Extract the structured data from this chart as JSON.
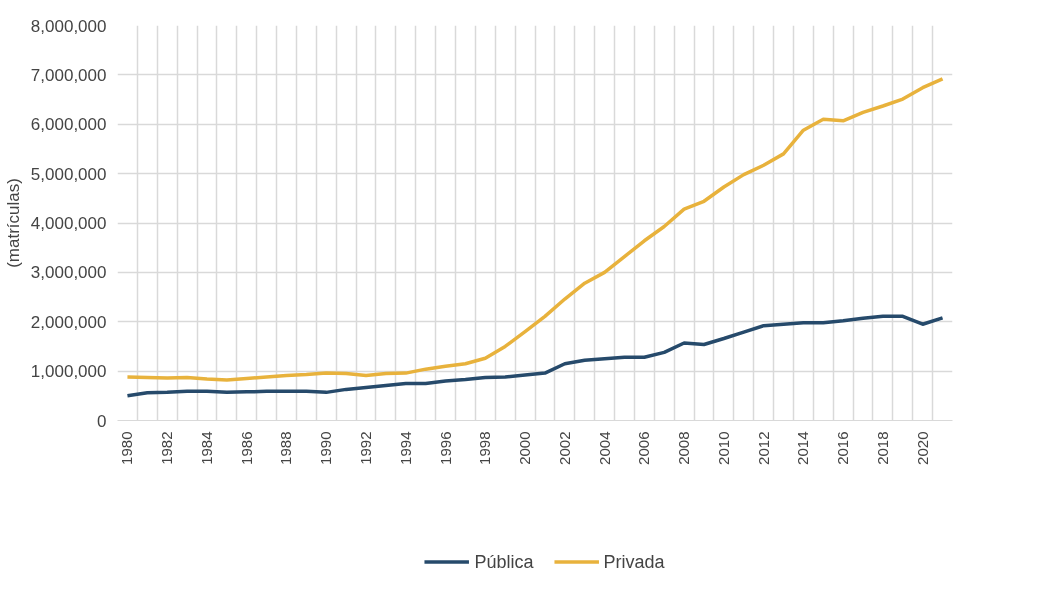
{
  "chart_data": {
    "type": "line",
    "ylabel": "(matrículas)",
    "categories": [
      "1980",
      null,
      "1982",
      null,
      "1984",
      null,
      "1986",
      null,
      "1988",
      null,
      "1990",
      null,
      "1992",
      null,
      "1994",
      null,
      "1996",
      null,
      "1998",
      null,
      "2000",
      null,
      "2002",
      null,
      "2004",
      null,
      "2006",
      null,
      "2008",
      null,
      "2010",
      null,
      "2012",
      null,
      "2014",
      null,
      "2016",
      null,
      "2018",
      null,
      "2020",
      null
    ],
    "series": [
      {
        "name": "Pública",
        "color": "#264a6b",
        "values": [
          500000,
          560000,
          570000,
          590000,
          590000,
          570000,
          580000,
          590000,
          590000,
          590000,
          570000,
          630000,
          670000,
          710000,
          750000,
          750000,
          800000,
          830000,
          870000,
          880000,
          920000,
          960000,
          1150000,
          1220000,
          1250000,
          1280000,
          1280000,
          1380000,
          1570000,
          1540000,
          1660000,
          1790000,
          1920000,
          1950000,
          1980000,
          1980000,
          2020000,
          2070000,
          2110000,
          2110000,
          1950000,
          2080000
        ]
      },
      {
        "name": "Privada",
        "color": "#e8b23c",
        "values": [
          880000,
          870000,
          860000,
          870000,
          840000,
          820000,
          850000,
          880000,
          910000,
          930000,
          960000,
          950000,
          910000,
          950000,
          960000,
          1040000,
          1100000,
          1150000,
          1260000,
          1500000,
          1800000,
          2110000,
          2460000,
          2780000,
          3000000,
          3320000,
          3640000,
          3930000,
          4280000,
          4440000,
          4730000,
          4980000,
          5170000,
          5400000,
          5880000,
          6100000,
          6070000,
          6240000,
          6370000,
          6510000,
          6740000,
          6920000
        ]
      }
    ],
    "ylim": [
      0,
      8000000
    ],
    "yticks": [
      {
        "value": 0,
        "label": "0"
      },
      {
        "value": 1000000,
        "label": "1,000,000"
      },
      {
        "value": 2000000,
        "label": "2,000,000"
      },
      {
        "value": 3000000,
        "label": "3,000,000"
      },
      {
        "value": 4000000,
        "label": "4,000,000"
      },
      {
        "value": 5000000,
        "label": "5,000,000"
      },
      {
        "value": 6000000,
        "label": "6,000,000"
      },
      {
        "value": 7000000,
        "label": "7,000,000"
      },
      {
        "value": 8000000,
        "label": "8,000,000"
      }
    ],
    "grid": true,
    "legend": "bottom"
  }
}
